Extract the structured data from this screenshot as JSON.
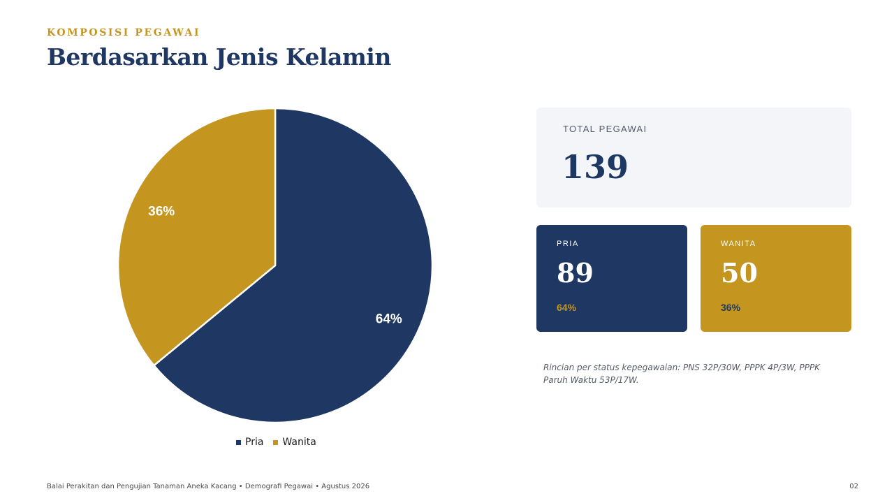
{
  "header": {
    "eyebrow": "KOMPOSISI PEGAWAI",
    "title": "Berdasarkan Jenis Kelamin"
  },
  "chart_data": {
    "type": "pie",
    "title": "",
    "categories": [
      "Pria",
      "Wanita"
    ],
    "values": [
      89,
      50
    ],
    "labels": [
      "64%",
      "36%"
    ],
    "colors": [
      "#1f3763",
      "#c4951f"
    ],
    "legend": "bottom"
  },
  "total_card": {
    "label": "TOTAL PEGAWAI",
    "value": "139"
  },
  "pria_card": {
    "label": "PRIA",
    "value": "89",
    "percent": "64%"
  },
  "wanita_card": {
    "label": "WANITA",
    "value": "50",
    "percent": "36%"
  },
  "note": "Rincian per status kepegawaian: PNS 32P/30W, PPPK 4P/3W, PPPK Paruh Waktu 53P/17W.",
  "footer": {
    "text": "Balai Perakitan dan Pengujian Tanaman Aneka Kacang • Demografi Pegawai • Agustus 2026",
    "page": "02"
  }
}
